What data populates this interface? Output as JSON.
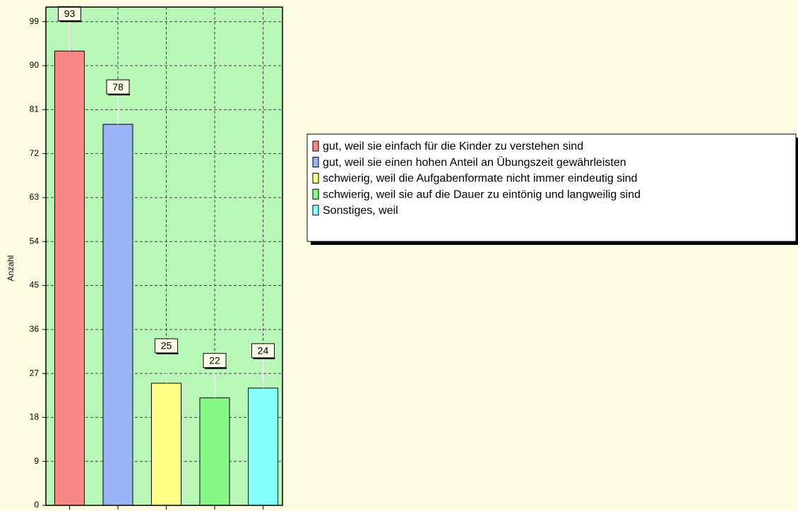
{
  "chart_data": {
    "type": "bar",
    "y_label": "Anzahl",
    "categories": [
      "gut, weil sie einfach für die Kinder zu verstehen sind",
      "gut, weil sie einen hohen Anteil an Übungszeit gewährleisten",
      "schwierig, weil die Aufgabenformate nicht immer eindeutig sind",
      "schwierig, weil sie auf die Dauer zu eintönig und langweilig sind",
      "Sonstiges, weil"
    ],
    "values": [
      93,
      78,
      25,
      22,
      24
    ],
    "colors": [
      "#f88888",
      "#99b4f5",
      "#ffff88",
      "#88f888",
      "#88ffff"
    ],
    "ylim": [
      0,
      102
    ],
    "yticks": [
      0,
      9,
      18,
      27,
      36,
      45,
      54,
      63,
      72,
      81,
      90,
      99
    ],
    "grid": true,
    "legend": "right"
  }
}
